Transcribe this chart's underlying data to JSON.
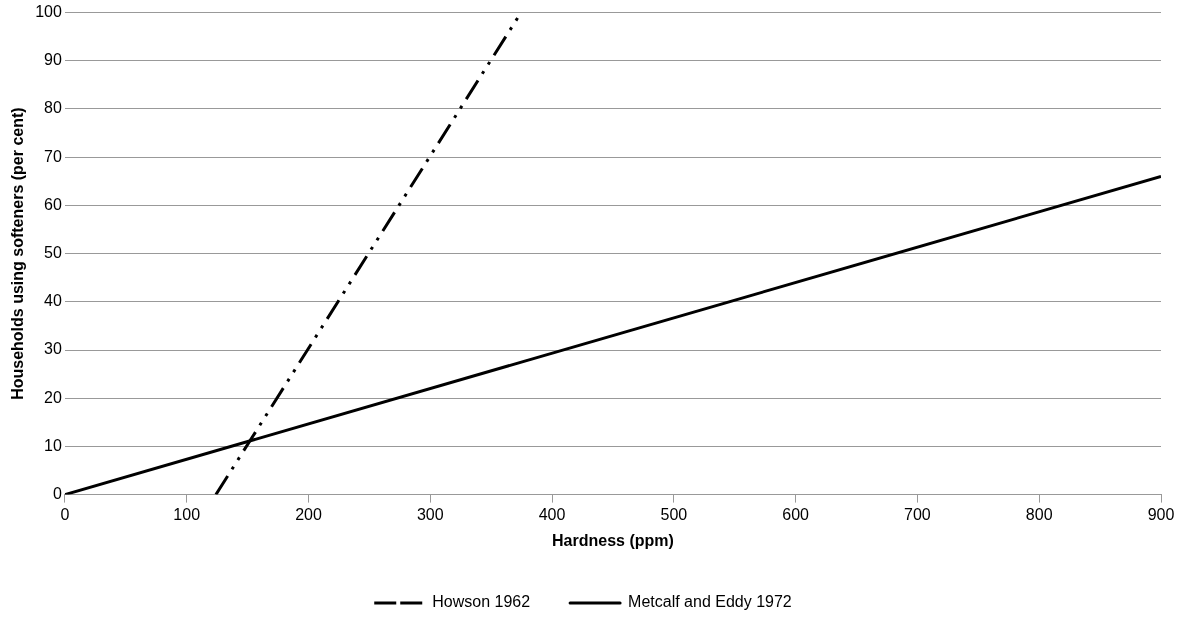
{
  "chart_data": {
    "type": "line",
    "xlabel": "Hardness (ppm)",
    "ylabel": "Households using softeners (per cent)",
    "series": [
      {
        "name": "Howson 1962",
        "color": "#000000",
        "line_style": "dashed",
        "x": [
          124,
          372
        ],
        "values": [
          0,
          99
        ]
      },
      {
        "name": "Metcalf and Eddy 1972",
        "color": "#000000",
        "line_style": "solid",
        "x": [
          0,
          900
        ],
        "values": [
          0,
          66
        ]
      }
    ],
    "xlim": [
      0,
      900
    ],
    "xticks": [
      0,
      100,
      200,
      300,
      400,
      500,
      600,
      700,
      800,
      900
    ],
    "ylim": [
      0,
      100
    ],
    "yticks": [
      0,
      10,
      20,
      30,
      40,
      50,
      60,
      70,
      80,
      90,
      100
    ],
    "grid": "y",
    "legend": "bottom",
    "marker": "none"
  }
}
